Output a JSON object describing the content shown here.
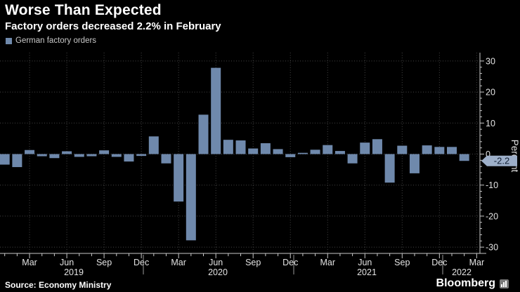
{
  "header": {
    "title": "Worse Than Expected",
    "subtitle": "Factory orders decreased 2.2% in February"
  },
  "legend": {
    "label": "German factory orders",
    "swatch_icon": "legend-square-icon"
  },
  "source": {
    "label": "Source: Economy Ministry"
  },
  "brand": {
    "label": "Bloomberg",
    "icon": "bloomberg-chart-icon"
  },
  "y_axis": {
    "title": "Percent",
    "ticks": [
      30,
      20,
      10,
      0,
      -10,
      -20,
      -30
    ]
  },
  "last_value_label": "-2.2",
  "colors": {
    "background": "#000000",
    "bar": "#6F89AC",
    "title_text": "#FFFFFF",
    "axis": "#C9C9C9",
    "grid": "#454545",
    "tag_bg": "#9DAFC9",
    "tag_text": "#101D31"
  },
  "chart_data": {
    "type": "bar",
    "title": "Worse Than Expected",
    "subtitle": "Factory orders decreased 2.2% in February",
    "series_name": "German factory orders",
    "ylabel": "Percent",
    "ylim": [
      -32,
      32
    ],
    "grid": "dotted, horizontal every 10 and vertical every quarter",
    "legend_position": "top-left",
    "x": [
      "Jan 2019",
      "Feb 2019",
      "Mar 2019",
      "Apr 2019",
      "May 2019",
      "Jun 2019",
      "Jul 2019",
      "Aug 2019",
      "Sep 2019",
      "Oct 2019",
      "Nov 2019",
      "Dec 2019",
      "Jan 2020",
      "Feb 2020",
      "Mar 2020",
      "Apr 2020",
      "May 2020",
      "Jun 2020",
      "Jul 2020",
      "Aug 2020",
      "Sep 2020",
      "Oct 2020",
      "Nov 2020",
      "Dec 2020",
      "Jan 2021",
      "Feb 2021",
      "Mar 2021",
      "Apr 2021",
      "May 2021",
      "Jun 2021",
      "Jul 2021",
      "Aug 2021",
      "Sep 2021",
      "Oct 2021",
      "Nov 2021",
      "Dec 2021",
      "Jan 2022",
      "Feb 2022"
    ],
    "values": [
      -3.4,
      -4.2,
      1.3,
      -0.7,
      -1.3,
      0.9,
      -0.9,
      -0.7,
      1.2,
      -0.9,
      -2.4,
      -0.6,
      5.7,
      -3.0,
      -15.3,
      -27.8,
      12.7,
      27.8,
      4.6,
      4.4,
      1.8,
      3.5,
      1.6,
      -1.0,
      0.4,
      1.4,
      2.9,
      1.0,
      -3.0,
      3.7,
      4.8,
      -9.2,
      2.7,
      -6.2,
      2.8,
      2.3,
      2.3,
      -2.2
    ],
    "x_ticks": [
      {
        "label": "Mar",
        "month_index": 2
      },
      {
        "label": "Jun",
        "month_index": 5
      },
      {
        "label": "Sep",
        "month_index": 8
      },
      {
        "label": "Dec",
        "month_index": 11
      },
      {
        "label": "Mar",
        "month_index": 14
      },
      {
        "label": "Jun",
        "month_index": 17
      },
      {
        "label": "Sep",
        "month_index": 20
      },
      {
        "label": "Dec",
        "month_index": 23
      },
      {
        "label": "Mar",
        "month_index": 26
      },
      {
        "label": "Jun",
        "month_index": 29
      },
      {
        "label": "Sep",
        "month_index": 32
      },
      {
        "label": "Dec",
        "month_index": 35
      },
      {
        "label": "Mar",
        "month_index": 38
      }
    ],
    "year_labels": [
      "2019",
      "2020",
      "2021",
      "2022"
    ]
  }
}
